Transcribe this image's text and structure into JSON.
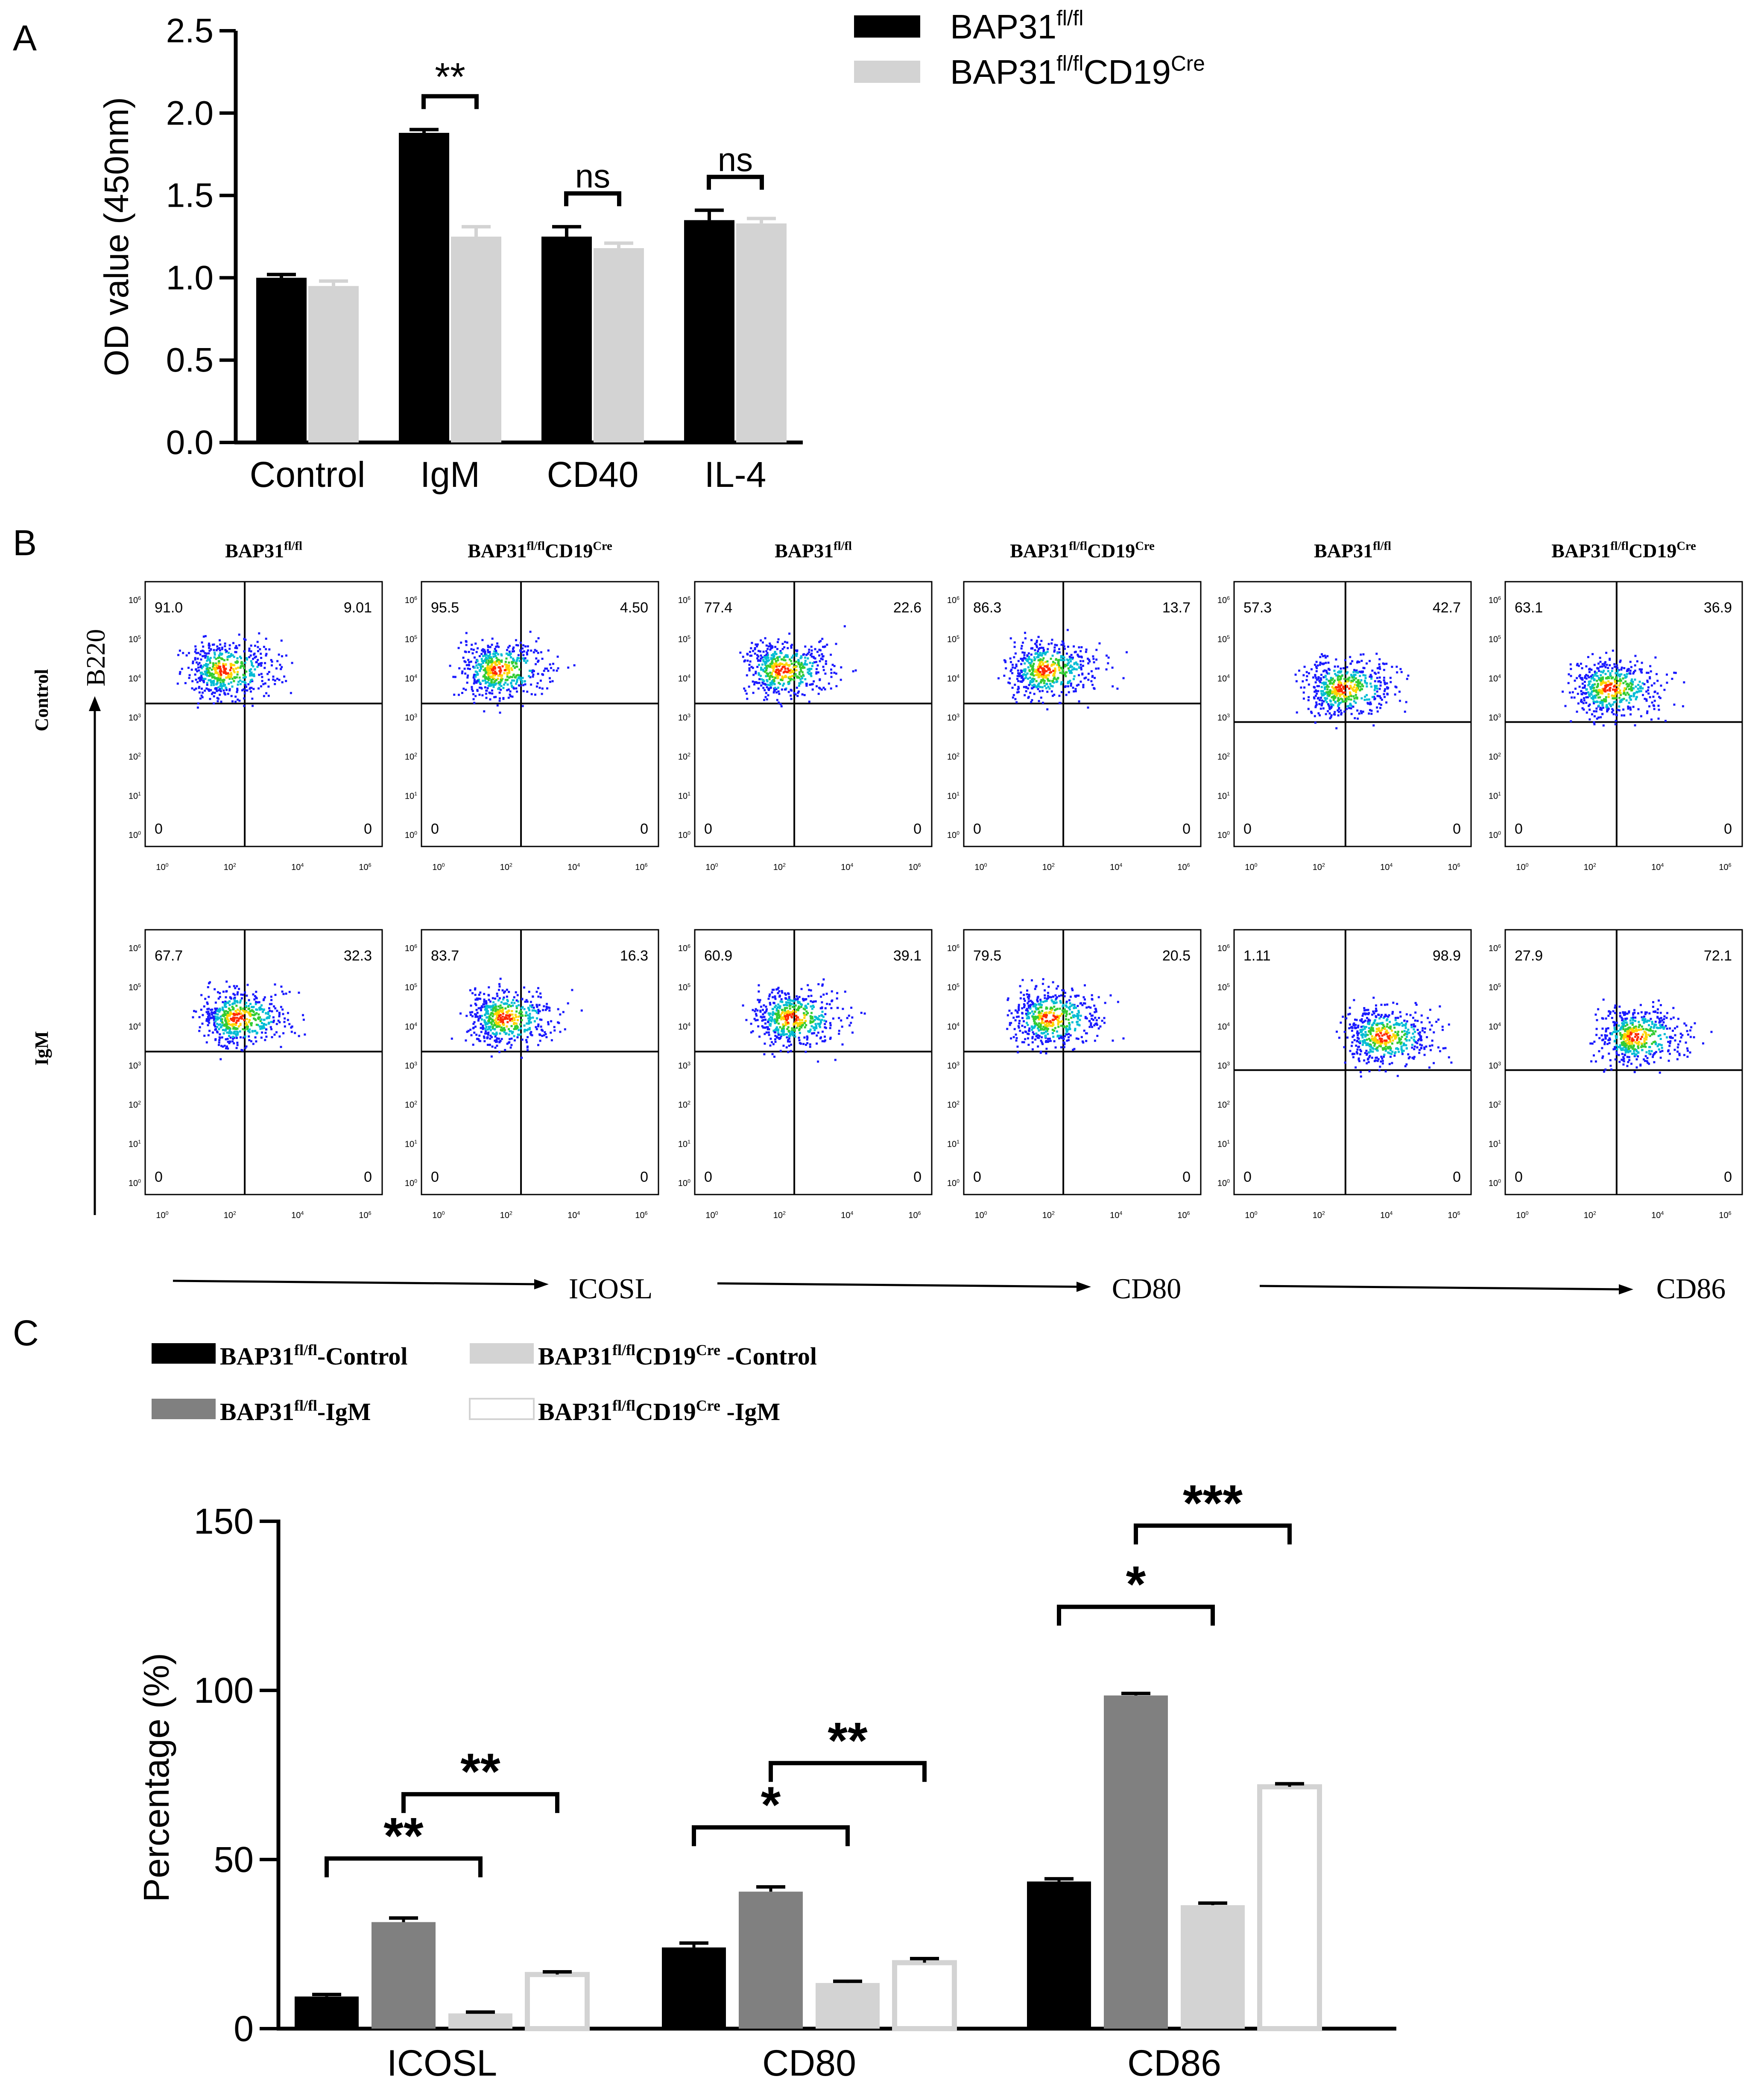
{
  "figure": {
    "panels": [
      {
        "letter": "A"
      },
      {
        "letter": "B"
      },
      {
        "letter": "C"
      }
    ]
  },
  "colors": {
    "fl": "#000000",
    "ko": "#d3d3d3",
    "igm_fl": "#808080",
    "igm_ko": "#ffffff",
    "ko_outline": "#d3d3d3"
  },
  "panel_b": {
    "col_headers": [
      {
        "base": "BAP31",
        "sup": "fl/fl",
        "cre": ""
      },
      {
        "base": "BAP31",
        "sup": "fl/fl",
        "cre": "CD19",
        "cre_sup": "Cre"
      },
      {
        "base": "BAP31",
        "sup": "fl/fl",
        "cre": ""
      },
      {
        "base": "BAP31",
        "sup": "fl/fl",
        "cre": "CD19",
        "cre_sup": "Cre"
      },
      {
        "base": "BAP31",
        "sup": "fl/fl",
        "cre": ""
      },
      {
        "base": "BAP31",
        "sup": "fl/fl",
        "cre": "CD19",
        "cre_sup": "Cre"
      }
    ],
    "row_labels": [
      "Control",
      "IgM"
    ],
    "y_axis_label": "B220",
    "x_axis_labels": [
      "ICOSL",
      "CD80",
      "CD86"
    ],
    "tick_labels_x": [
      "10",
      "10",
      "10",
      "10"
    ],
    "tick_exp_x": [
      "0",
      "2",
      "4",
      "6"
    ],
    "tick_labels_y": [
      "10",
      "10",
      "10",
      "10",
      "10",
      "10",
      "10"
    ],
    "tick_exp_y": [
      "6",
      "5",
      "4",
      "3",
      "2",
      "1",
      "0"
    ],
    "plots": [
      {
        "row": 0,
        "col": 0,
        "ul": "91.0",
        "ur": "9.01",
        "ll": "0",
        "lr": "0"
      },
      {
        "row": 0,
        "col": 1,
        "ul": "95.5",
        "ur": "4.50",
        "ll": "0",
        "lr": "0"
      },
      {
        "row": 0,
        "col": 2,
        "ul": "77.4",
        "ur": "22.6",
        "ll": "0",
        "lr": "0"
      },
      {
        "row": 0,
        "col": 3,
        "ul": "86.3",
        "ur": "13.7",
        "ll": "0",
        "lr": "0"
      },
      {
        "row": 0,
        "col": 4,
        "ul": "57.3",
        "ur": "42.7",
        "ll": "0",
        "lr": "0"
      },
      {
        "row": 0,
        "col": 5,
        "ul": "63.1",
        "ur": "36.9",
        "ll": "0",
        "lr": "0"
      },
      {
        "row": 1,
        "col": 0,
        "ul": "67.7",
        "ur": "32.3",
        "ll": "0",
        "lr": "0"
      },
      {
        "row": 1,
        "col": 1,
        "ul": "83.7",
        "ur": "16.3",
        "ll": "0",
        "lr": "0"
      },
      {
        "row": 1,
        "col": 2,
        "ul": "60.9",
        "ur": "39.1",
        "ll": "0",
        "lr": "0"
      },
      {
        "row": 1,
        "col": 3,
        "ul": "79.5",
        "ur": "20.5",
        "ll": "0",
        "lr": "0"
      },
      {
        "row": 1,
        "col": 4,
        "ul": "1.11",
        "ur": "98.9",
        "ll": "0",
        "lr": "0"
      },
      {
        "row": 1,
        "col": 5,
        "ul": "27.9",
        "ur": "72.1",
        "ll": "0",
        "lr": "0"
      }
    ]
  },
  "chart_data": [
    {
      "type": "bar",
      "panel": "A",
      "title": "",
      "xlabel": "",
      "ylabel": "OD value (450nm)",
      "ylim": [
        0,
        2.5
      ],
      "yticks": [
        "0.0",
        "0.5",
        "1.0",
        "1.5",
        "2.0",
        "2.5"
      ],
      "categories": [
        "Control",
        "IgM",
        "CD40",
        "IL-4"
      ],
      "series": [
        {
          "name": "BAP31",
          "sup": "fl/fl",
          "cre": "",
          "cre_sup": "",
          "values": [
            1.0,
            1.88,
            1.25,
            1.35
          ],
          "errors": [
            0.02,
            0.02,
            0.06,
            0.06
          ]
        },
        {
          "name": "BAP31",
          "sup": "fl/fl",
          "cre": "CD19",
          "cre_sup": "Cre",
          "values": [
            0.95,
            1.25,
            1.18,
            1.33
          ],
          "errors": [
            0.03,
            0.06,
            0.03,
            0.03
          ]
        }
      ],
      "significance": [
        {
          "category": 1,
          "label": "**"
        },
        {
          "category": 2,
          "label": "ns"
        },
        {
          "category": 3,
          "label": "ns"
        }
      ],
      "legend": "top-right"
    },
    {
      "type": "bar",
      "panel": "C",
      "title": "",
      "xlabel": "",
      "ylabel": "Percentage (%)",
      "ylim": [
        0,
        150
      ],
      "yticks": [
        "0",
        "50",
        "100",
        "150"
      ],
      "categories": [
        "ICOSL",
        "CD80",
        "CD86"
      ],
      "series": [
        {
          "name": "BAP31",
          "sup": "fl/fl",
          "cre": "",
          "cre_sup": "",
          "suffix": "-Control",
          "values": [
            9.5,
            24.0,
            43.5
          ],
          "errors": [
            0.6,
            1.3,
            0.8
          ]
        },
        {
          "name": "BAP31",
          "sup": "fl/fl",
          "cre": "",
          "cre_sup": "",
          "suffix": "-IgM",
          "values": [
            31.5,
            40.5,
            98.5
          ],
          "errors": [
            1.2,
            1.4,
            0.6
          ]
        },
        {
          "name": "BAP31",
          "sup": "fl/fl",
          "cre": "CD19",
          "cre_sup": "Cre",
          "suffix": " -Control",
          "values": [
            4.5,
            13.5,
            36.5
          ],
          "errors": [
            0.4,
            0.5,
            0.6
          ]
        },
        {
          "name": "BAP31",
          "sup": "fl/fl",
          "cre": "CD19",
          "cre_sup": "Cre",
          "suffix": " -IgM",
          "values": [
            16.0,
            19.5,
            71.5
          ],
          "errors": [
            0.8,
            1.2,
            0.9
          ]
        }
      ],
      "significance": [
        {
          "category": 0,
          "from": 0,
          "to": 2,
          "label": "**"
        },
        {
          "category": 0,
          "from": 1,
          "to": 3,
          "label": "**"
        },
        {
          "category": 1,
          "from": 0,
          "to": 2,
          "label": "*"
        },
        {
          "category": 1,
          "from": 1,
          "to": 3,
          "label": "**"
        },
        {
          "category": 2,
          "from": 0,
          "to": 2,
          "label": "*"
        },
        {
          "category": 2,
          "from": 1,
          "to": 3,
          "label": "***"
        }
      ],
      "legend": "top-left"
    }
  ]
}
